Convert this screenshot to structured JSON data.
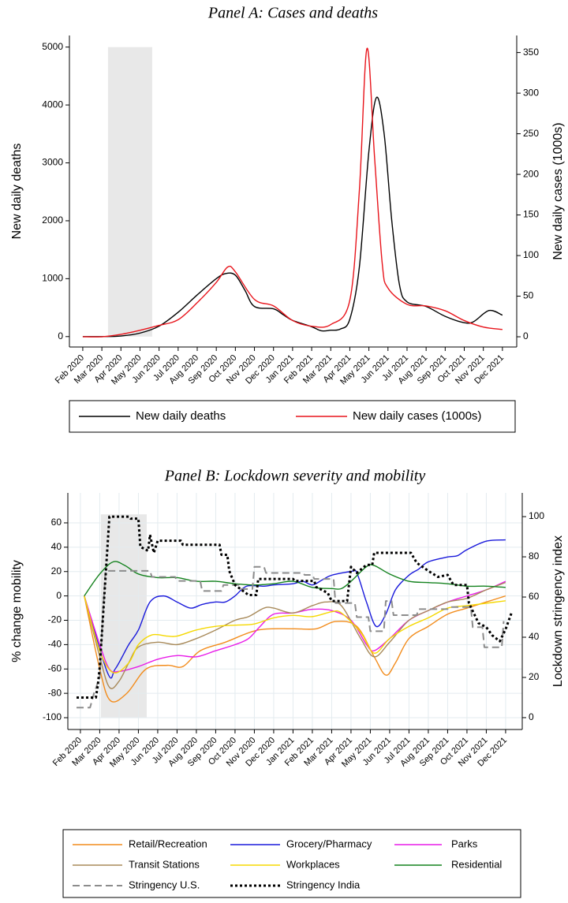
{
  "chart_data": [
    {
      "type": "line",
      "title": "Panel A: Cases and deaths",
      "y_label": "New daily deaths",
      "y2_label": "New daily cases (1000s)",
      "grid": false,
      "xlim": [
        -0.7,
        22.75
      ],
      "xticks": [
        {
          "value": 0,
          "label": "Feb 2020"
        },
        {
          "value": 1,
          "label": "Mar 2020"
        },
        {
          "value": 2,
          "label": "Apr 2020"
        },
        {
          "value": 3,
          "label": "May 2020"
        },
        {
          "value": 4,
          "label": "Jun 2020"
        },
        {
          "value": 5,
          "label": "Jul 2020"
        },
        {
          "value": 6,
          "label": "Aug 2020"
        },
        {
          "value": 7,
          "label": "Sep 2020"
        },
        {
          "value": 8,
          "label": "Oct 2020"
        },
        {
          "value": 9,
          "label": "Nov 2020"
        },
        {
          "value": 10,
          "label": "Dec 2020"
        },
        {
          "value": 11,
          "label": "Jan 2021"
        },
        {
          "value": 12,
          "label": "Feb 2021"
        },
        {
          "value": 13,
          "label": "Mar 2021"
        },
        {
          "value": 14,
          "label": "Apr 2021"
        },
        {
          "value": 15,
          "label": "May 2021"
        },
        {
          "value": 16,
          "label": "Jun 2021"
        },
        {
          "value": 17,
          "label": "Jul 2021"
        },
        {
          "value": 18,
          "label": "Aug 2021"
        },
        {
          "value": 19,
          "label": "Sep 2021"
        },
        {
          "value": 20,
          "label": "Oct 2021"
        },
        {
          "value": 21,
          "label": "Nov 2021"
        },
        {
          "value": 22,
          "label": "Dec 2021"
        }
      ],
      "ylim": [
        -180,
        5200
      ],
      "yticks": [
        0,
        1000,
        2000,
        3000,
        4000,
        5000
      ],
      "y2lim": [
        -12.6,
        371
      ],
      "y2ticks": [
        0,
        50,
        100,
        150,
        200,
        250,
        300,
        350
      ],
      "shaded_period": {
        "x": [
          1.32,
          3.64
        ],
        "y": [
          0,
          5000
        ]
      },
      "series": [
        {
          "name": "New daily deaths",
          "color": "#000000",
          "line": "solid",
          "x": [
            0,
            1,
            2,
            3,
            4,
            5,
            6,
            7,
            7.5,
            8,
            8.5,
            9,
            10,
            10.5,
            11,
            12,
            12.5,
            13,
            13.5,
            14,
            14.5,
            15,
            15.4,
            15.8,
            16.2,
            16.6,
            17,
            18,
            19,
            20,
            20.5,
            21.3,
            22
          ],
          "values": [
            0,
            0,
            10,
            60,
            180,
            420,
            720,
            1000,
            1090,
            1060,
            800,
            520,
            480,
            380,
            280,
            170,
            100,
            110,
            130,
            300,
            1200,
            3200,
            4130,
            3500,
            2000,
            900,
            600,
            520,
            350,
            240,
            260,
            450,
            370
          ]
        },
        {
          "name": "New daily cases (1000s)",
          "color": "#e8141b",
          "line": "solid",
          "axis": "y2",
          "x": [
            0,
            1,
            2,
            3,
            4,
            5,
            6,
            7,
            7.6,
            8,
            9,
            10,
            11,
            12,
            13,
            14,
            14.5,
            14.9,
            15.3,
            15.7,
            16,
            17,
            18,
            19,
            20,
            21,
            22
          ],
          "values": [
            0,
            0,
            3,
            8,
            14,
            21,
            42,
            67,
            86,
            80,
            46,
            38,
            20,
            13,
            15,
            45,
            180,
            355,
            220,
            90,
            60,
            40,
            38,
            32,
            20,
            12,
            9
          ]
        }
      ]
    },
    {
      "type": "line",
      "title": "Panel B: Lockdown severity and mobility",
      "y_label": "% change mobility",
      "y2_label": "Lockdown stringency index",
      "grid": true,
      "xlim": [
        -0.65,
        22.86
      ],
      "xticks": [
        {
          "value": 0,
          "label": "Feb 2020"
        },
        {
          "value": 1,
          "label": "Mar 2020"
        },
        {
          "value": 2,
          "label": "Apr 2020"
        },
        {
          "value": 3,
          "label": "May 2020"
        },
        {
          "value": 4,
          "label": "Jun 2020"
        },
        {
          "value": 5,
          "label": "Jul 2020"
        },
        {
          "value": 6,
          "label": "Aug 2020"
        },
        {
          "value": 7,
          "label": "Sep 2020"
        },
        {
          "value": 8,
          "label": "Oct 2020"
        },
        {
          "value": 9,
          "label": "Nov 2020"
        },
        {
          "value": 10,
          "label": "Dec 2020"
        },
        {
          "value": 11,
          "label": "Jan 2021"
        },
        {
          "value": 12,
          "label": "Feb 2021"
        },
        {
          "value": 13,
          "label": "Mar 2021"
        },
        {
          "value": 14,
          "label": "Apr 2021"
        },
        {
          "value": 15,
          "label": "May 2021"
        },
        {
          "value": 16,
          "label": "Jun 2021"
        },
        {
          "value": 17,
          "label": "Jul 2021"
        },
        {
          "value": 18,
          "label": "Aug 2021"
        },
        {
          "value": 19,
          "label": "Sep 2021"
        },
        {
          "value": 20,
          "label": "Oct 2021"
        },
        {
          "value": 21,
          "label": "Nov 2021"
        },
        {
          "value": 22,
          "label": "Dec 2021"
        }
      ],
      "ylim": [
        -109.7,
        84.6
      ],
      "yticks": [
        -100,
        -80,
        -60,
        -40,
        -20,
        0,
        20,
        40,
        60
      ],
      "y2lim": [
        -5.9,
        111.8
      ],
      "y2ticks": [
        0,
        20,
        40,
        60,
        80,
        100
      ],
      "shaded_period": {
        "x": [
          1.06,
          3.43
        ],
        "y": [
          -100,
          67
        ]
      },
      "series": [
        {
          "name": "Retail/Recreation",
          "color": "#f28c1c",
          "line": "solid",
          "x": [
            0.2,
            1,
            1.55,
            2.4,
            3.4,
            4.5,
            5.3,
            6.2,
            7.5,
            9.2,
            11,
            12.2,
            13.2,
            14.3,
            15.2,
            15.8,
            16.3,
            17,
            18,
            19,
            20,
            21,
            22
          ],
          "values": [
            0,
            -60,
            -86,
            -80,
            -60,
            -57,
            -58,
            -45,
            -38,
            -28,
            -27,
            -27,
            -21,
            -25,
            -50,
            -65,
            -55,
            -35,
            -25,
            -15,
            -10,
            -5,
            0
          ]
        },
        {
          "name": "Grocery/Pharmacy",
          "color": "#1a1adb",
          "line": "solid",
          "x": [
            0.2,
            1.4,
            1.8,
            2.5,
            3,
            3.6,
            4.3,
            5,
            5.7,
            6.3,
            7,
            7.5,
            8,
            8.6,
            9.5,
            10,
            11,
            11.5,
            12,
            12.5,
            13,
            14,
            14.3,
            14.8,
            15.3,
            15.8,
            16.3,
            17,
            17.5,
            18,
            19,
            19.5,
            20,
            21,
            22
          ],
          "values": [
            0,
            -63,
            -60,
            -40,
            -28,
            -5,
            0,
            -5,
            -10,
            -7,
            -5,
            -5,
            0,
            8,
            8,
            9,
            10,
            12,
            9,
            13,
            17,
            20,
            19,
            -5,
            -25,
            -15,
            5,
            17,
            22,
            28,
            32,
            33,
            38,
            45,
            46
          ]
        },
        {
          "name": "Parks",
          "color": "#e81ce8",
          "line": "solid",
          "x": [
            0.2,
            1,
            1.5,
            2,
            3,
            4,
            5,
            6,
            7,
            8,
            8.7,
            9.3,
            10,
            11,
            12,
            13,
            14,
            14.8,
            15.2,
            16,
            17,
            18,
            19,
            20,
            21,
            22
          ],
          "values": [
            0,
            -40,
            -60,
            -62,
            -58,
            -52,
            -49,
            -50,
            -45,
            -40,
            -35,
            -25,
            -15,
            -14,
            -11,
            -12,
            -20,
            -40,
            -45,
            -35,
            -20,
            -12,
            -5,
            0,
            5,
            12
          ]
        },
        {
          "name": "Transit Stations",
          "color": "#a88a5a",
          "line": "solid",
          "x": [
            0.2,
            1,
            1.5,
            2,
            2.5,
            3,
            4,
            5,
            6,
            7,
            8,
            8.7,
            9.5,
            10,
            11,
            12,
            12.7,
            13.5,
            14.5,
            15.2,
            16,
            17,
            18,
            19,
            20,
            21,
            22
          ],
          "values": [
            0,
            -50,
            -75,
            -70,
            -55,
            -42,
            -38,
            -40,
            -35,
            -28,
            -20,
            -17,
            -10,
            -10,
            -14,
            -8,
            -5,
            -8,
            -35,
            -50,
            -38,
            -20,
            -12,
            -5,
            -2,
            5,
            11
          ]
        },
        {
          "name": "Workplaces",
          "color": "#f5d800",
          "line": "solid",
          "x": [
            0.2,
            1,
            1.7,
            2.5,
            3,
            3.7,
            4.5,
            5,
            6,
            7,
            8,
            9,
            10,
            11,
            12,
            13,
            13.5,
            14.5,
            15.2,
            16,
            17,
            18,
            19,
            20,
            21,
            22
          ],
          "values": [
            0,
            -45,
            -63,
            -55,
            -40,
            -32,
            -33,
            -33,
            -28,
            -25,
            -24,
            -23,
            -18,
            -16,
            -17,
            -13,
            -14,
            -30,
            -47,
            -35,
            -25,
            -18,
            -10,
            -8,
            -6,
            -4
          ]
        },
        {
          "name": "Residential",
          "color": "#14821e",
          "line": "solid",
          "x": [
            0.2,
            1,
            1.7,
            2.3,
            3,
            4,
            5,
            6,
            7,
            8,
            9,
            10,
            11,
            12,
            13,
            13.5,
            14,
            14.8,
            15.2,
            16,
            17,
            18,
            19,
            20,
            21,
            22
          ],
          "values": [
            0,
            18,
            28,
            25,
            18,
            15,
            15,
            12,
            12,
            10,
            9,
            10,
            12,
            7,
            6,
            6,
            12,
            24,
            25,
            18,
            12,
            11,
            10,
            8,
            8,
            7
          ]
        },
        {
          "name": "Stringency U.S.",
          "color": "#8c8c8c",
          "line": "dash",
          "axis": "y2",
          "x": [
            -0.2,
            0.5,
            0.7,
            1.0,
            1.15,
            1.3,
            3.6,
            3.7,
            4.9,
            5.0,
            6.2,
            6.3,
            7.3,
            7.4,
            8.2,
            8.3,
            8.9,
            9.0,
            9.5,
            9.6,
            11.5,
            11.6,
            12.0,
            12.1,
            13.1,
            13.2,
            14.2,
            14.3,
            14.9,
            15.0,
            15.7,
            15.8,
            16.1,
            16.2,
            17.4,
            17.5,
            19.0,
            19.1,
            20.2,
            20.3,
            20.8,
            20.9,
            21.8,
            21.9
          ],
          "values": [
            5,
            5,
            12,
            20,
            50,
            73,
            73,
            70,
            70,
            68,
            68,
            63,
            63,
            66,
            66,
            64,
            64,
            75,
            75,
            72,
            72,
            71,
            71,
            69,
            69,
            57,
            57,
            50,
            50,
            43,
            43,
            58,
            58,
            51,
            51,
            54,
            54,
            55,
            55,
            45,
            45,
            35,
            35,
            48
          ]
        },
        {
          "name": "Stringency India",
          "color": "#000000",
          "line": "dot",
          "axis": "y2",
          "x": [
            -0.2,
            0.8,
            0.9,
            1.0,
            1.1,
            1.3,
            1.5,
            2.5,
            2.6,
            3.0,
            3.1,
            3.5,
            3.6,
            3.8,
            4.0,
            5.2,
            5.3,
            7.2,
            7.3,
            7.6,
            7.7,
            8.0,
            8.7,
            9.1,
            9.2,
            11.0,
            11.1,
            12.1,
            12.2,
            12.8,
            13.0,
            13.8,
            14.0,
            14.3,
            14.8,
            15.1,
            15.2,
            17.1,
            17.4,
            18.0,
            18.5,
            19.0,
            19.3,
            20.0,
            20.1,
            20.6,
            21.0,
            21.3,
            21.7,
            22.0,
            22.3
          ],
          "values": [
            10,
            10,
            16,
            25,
            40,
            70,
            100,
            100,
            99,
            99,
            85,
            83,
            91,
            82,
            88,
            88,
            86,
            86,
            81,
            81,
            73,
            66,
            61,
            61,
            69,
            69,
            68,
            68,
            65,
            62,
            58,
            58,
            75,
            72,
            76,
            76,
            82,
            82,
            77,
            73,
            70,
            71,
            66,
            66,
            57,
            47,
            45,
            41,
            38,
            44,
            52
          ]
        }
      ]
    }
  ]
}
